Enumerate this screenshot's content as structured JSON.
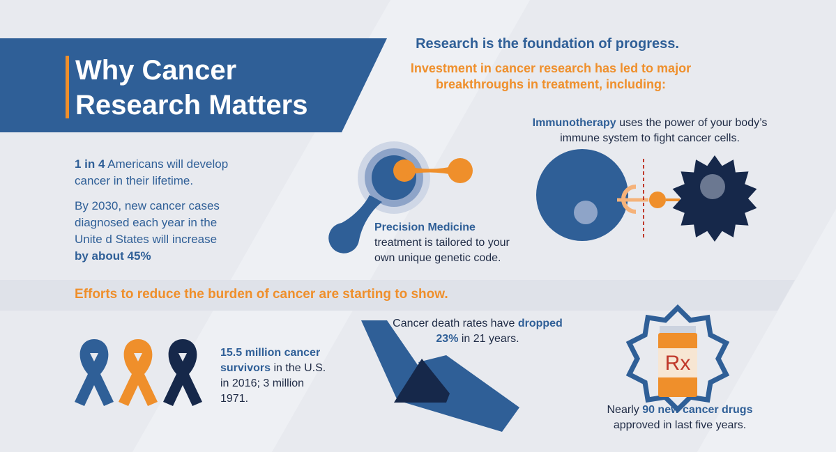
{
  "header": {
    "title": [
      "Why Cancer",
      "Research Matters"
    ]
  },
  "intro": {
    "heading": "Research is the foundation of progress.",
    "subheading": [
      "Investment in cancer research has led to major",
      "breakthroughs in treatment, including:"
    ]
  },
  "facts": [
    {
      "highlight": "1 in 4",
      "text": "Americans will develop cancer in their lifetime."
    },
    {
      "text": "By 2030, new cancer cases diagnosed each year in the Unite d States will increase",
      "highlight": "by about 45%"
    }
  ],
  "treatments": {
    "precision": {
      "name": "Precision Medicine",
      "text": "treatment is tailored to your own unique genetic code."
    },
    "immuno": {
      "name": "Immunotherapy",
      "text": "uses the power of your body’s immune system to fight cancer cells."
    }
  },
  "efforts": {
    "heading": "Efforts to reduce the burden of cancer are starting to show.",
    "survivors": {
      "highlight": "15.5 million cancer survivors",
      "text": "in the U.S. in 2016; 3 million 1971."
    },
    "death_rates": {
      "before": "Cancer death rates have",
      "highlight": "dropped 23%",
      "after": "in 21 years."
    },
    "drugs": {
      "before": "Nearly",
      "highlight": "90 new cancer drugs",
      "after": "approved in last five years.",
      "label": "Rx"
    }
  }
}
